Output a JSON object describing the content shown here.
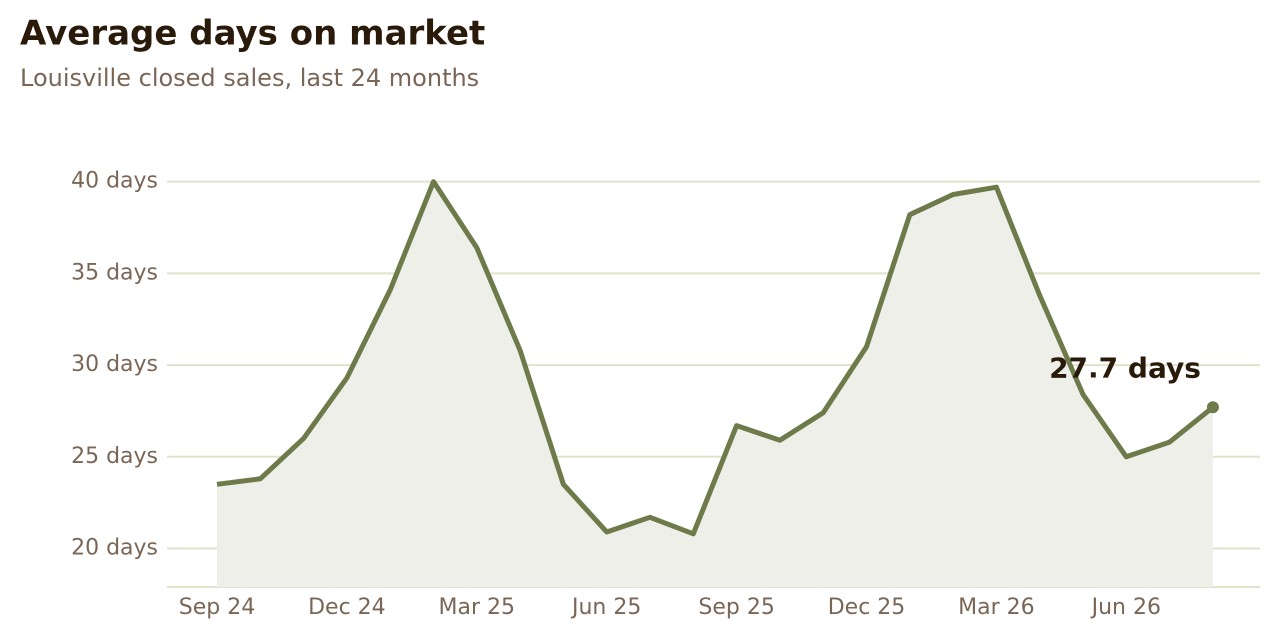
{
  "chart_data": {
    "type": "line",
    "title": "Average days on market",
    "subtitle": "Louisville closed sales, last 24 months",
    "categories": [
      "Sep 24",
      null,
      null,
      "Dec 24",
      null,
      null,
      "Mar 25",
      null,
      null,
      "Jun 25",
      null,
      null,
      "Sep 25",
      null,
      null,
      "Dec 25",
      null,
      null,
      "Mar 26",
      null,
      null,
      "Jun 26",
      null,
      null
    ],
    "series": [
      {
        "color": "#6e7a4a",
        "values": [
          23.5,
          23.8,
          26.0,
          29.3,
          34.1,
          40.0,
          36.4,
          30.8,
          23.5,
          20.9,
          21.7,
          20.8,
          26.7,
          25.9,
          27.4,
          31.0,
          38.2,
          39.3,
          39.7,
          33.8,
          28.4,
          25.0,
          25.8,
          27.7
        ],
        "value_labels": [
          null,
          null,
          null,
          null,
          null,
          null,
          null,
          null,
          null,
          null,
          null,
          null,
          null,
          null,
          null,
          null,
          null,
          null,
          null,
          null,
          null,
          null,
          null,
          "27.7 days"
        ]
      }
    ],
    "area_fill": "#efefea",
    "ylim": [
      17.9,
      42
    ],
    "yticks": [
      {
        "value": 20,
        "label": "20 days"
      },
      {
        "value": 25,
        "label": "25 days"
      },
      {
        "value": 30,
        "label": "30 days"
      },
      {
        "value": 35,
        "label": "35 days"
      },
      {
        "value": 40,
        "label": "40 days"
      }
    ],
    "grid": true
  }
}
